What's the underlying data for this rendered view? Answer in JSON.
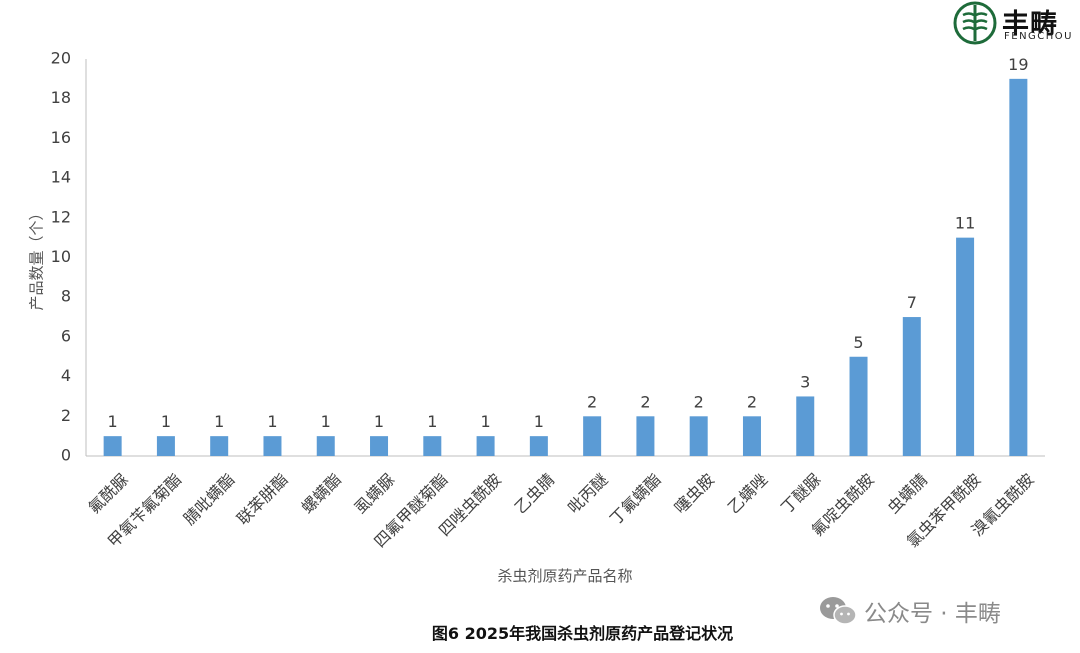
{
  "brand": {
    "name_cn": "丰畴",
    "name_en": "FENGCHOU"
  },
  "caption": "图6 2025年我国杀虫剂原药产品登记状况",
  "watermark": {
    "text": "公众号 · 丰畴",
    "icon": "wechat-icon"
  },
  "colors": {
    "bar": "#5b9bd5",
    "axis": "#bfbfbf",
    "text": "#404040"
  },
  "chart_data": {
    "type": "bar",
    "title": "",
    "xlabel": "杀虫剂原药产品名称",
    "ylabel": "产品数量（个）",
    "ylim": [
      0,
      20
    ],
    "yticks": [
      0,
      2,
      4,
      6,
      8,
      10,
      12,
      14,
      16,
      18,
      20
    ],
    "grid": false,
    "categories": [
      "氟酰脲",
      "甲氧苄氟菊酯",
      "腈吡螨酯",
      "联苯肼酯",
      "螺螨酯",
      "虱螨脲",
      "四氟甲醚菊酯",
      "四唑虫酰胺",
      "乙虫腈",
      "吡丙醚",
      "丁氟螨酯",
      "噻虫胺",
      "乙螨唑",
      "丁醚脲",
      "氟啶虫酰胺",
      "虫螨腈",
      "氯虫苯甲酰胺",
      "溴氰虫酰胺"
    ],
    "values": [
      1,
      1,
      1,
      1,
      1,
      1,
      1,
      1,
      1,
      2,
      2,
      2,
      2,
      3,
      5,
      7,
      11,
      19
    ],
    "data_labels": [
      "1",
      "1",
      "1",
      "1",
      "1",
      "1",
      "1",
      "1",
      "1",
      "2",
      "2",
      "2",
      "2",
      "3",
      "5",
      "7",
      "11",
      "19"
    ]
  }
}
